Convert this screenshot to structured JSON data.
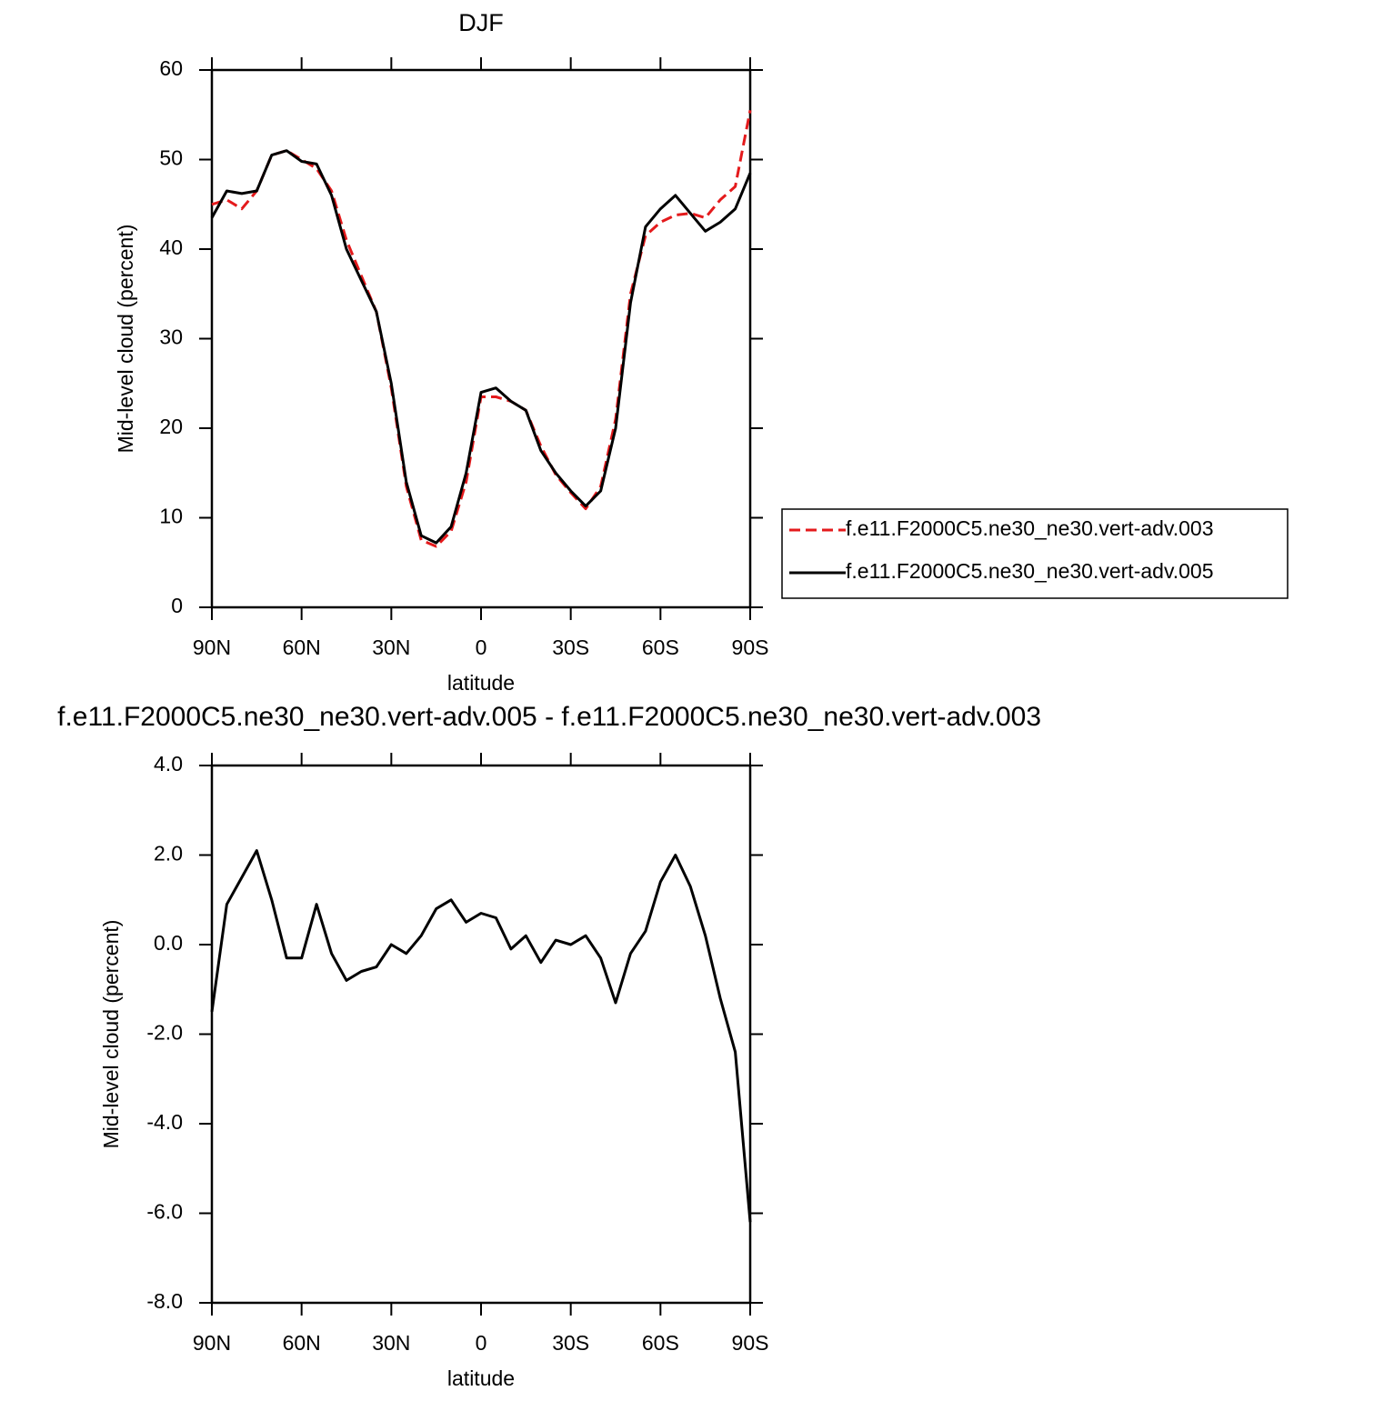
{
  "chart_data": [
    {
      "type": "line",
      "title": "DJF",
      "ylabel": "Mid-level cloud (percent)",
      "xlabel": "latitude",
      "x": [
        90,
        85,
        80,
        75,
        70,
        65,
        60,
        55,
        50,
        45,
        40,
        35,
        30,
        25,
        20,
        15,
        10,
        5,
        0,
        -5,
        -10,
        -15,
        -20,
        -25,
        -30,
        -35,
        -40,
        -45,
        -50,
        -55,
        -60,
        -65,
        -70,
        -75,
        -80,
        -85,
        -90
      ],
      "xlim": [
        90,
        -90
      ],
      "xticks": [
        {
          "value": 90,
          "label": "90N"
        },
        {
          "value": 60,
          "label": "60N"
        },
        {
          "value": 30,
          "label": "30N"
        },
        0,
        {
          "value": -30,
          "label": "30S"
        },
        {
          "value": -60,
          "label": "60S"
        },
        {
          "value": -90,
          "label": "90S"
        }
      ],
      "ylim": [
        0,
        60
      ],
      "yticks": [
        0,
        10,
        20,
        30,
        40,
        50,
        60
      ],
      "series": [
        {
          "name": "f.e11.F2000C5.ne30_ne30.vert-adv.003",
          "color": "#e41a1c",
          "dash": true,
          "values": [
            45,
            45.5,
            44.5,
            46.5,
            50.5,
            51,
            50,
            49,
            46.5,
            41,
            37,
            33,
            24.5,
            13.5,
            7.5,
            6.8,
            8.5,
            14,
            23.5,
            23.5,
            23,
            22,
            18,
            14.8,
            12.8,
            11,
            13.5,
            21,
            35,
            41.5,
            43,
            43.8,
            44,
            43.5,
            45.5,
            47,
            55.5
          ]
        },
        {
          "name": "f.e11.F2000C5.ne30_ne30.vert-adv.005",
          "color": "#000000",
          "dash": false,
          "values": [
            43.5,
            46.5,
            46.2,
            46.5,
            50.5,
            51,
            49.8,
            49.5,
            46,
            40,
            36.5,
            33,
            25,
            14,
            8,
            7.2,
            9,
            15,
            24,
            24.5,
            23,
            22,
            17.5,
            15,
            13,
            11.3,
            13,
            20,
            34,
            42.5,
            44.5,
            46,
            44,
            42,
            43,
            44.5,
            48.5
          ]
        }
      ]
    },
    {
      "type": "line",
      "title": "f.e11.F2000C5.ne30_ne30.vert-adv.005 - f.e11.F2000C5.ne30_ne30.vert-adv.003",
      "ylabel": "Mid-level cloud (percent)",
      "xlabel": "latitude",
      "x": [
        90,
        85,
        80,
        75,
        70,
        65,
        60,
        55,
        50,
        45,
        40,
        35,
        30,
        25,
        20,
        15,
        10,
        5,
        0,
        -5,
        -10,
        -15,
        -20,
        -25,
        -30,
        -35,
        -40,
        -45,
        -50,
        -55,
        -60,
        -65,
        -70,
        -75,
        -80,
        -85,
        -90
      ],
      "xlim": [
        90,
        -90
      ],
      "xticks": [
        {
          "value": 90,
          "label": "90N"
        },
        {
          "value": 60,
          "label": "60N"
        },
        {
          "value": 30,
          "label": "30N"
        },
        0,
        {
          "value": -30,
          "label": "30S"
        },
        {
          "value": -60,
          "label": "60S"
        },
        {
          "value": -90,
          "label": "90S"
        }
      ],
      "ylim": [
        -8,
        4
      ],
      "yticks": [
        {
          "value": -8,
          "label": "-8.0"
        },
        {
          "value": -6,
          "label": "-6.0"
        },
        {
          "value": -4,
          "label": "-4.0"
        },
        {
          "value": -2,
          "label": "-2.0"
        },
        {
          "value": 0,
          "label": "0.0"
        },
        {
          "value": 2,
          "label": "2.0"
        },
        {
          "value": 4,
          "label": "4.0"
        }
      ],
      "series": [
        {
          "color": "#000000",
          "dash": false,
          "values": [
            -1.5,
            0.9,
            1.5,
            2.1,
            1.0,
            -0.3,
            -0.3,
            0.9,
            -0.2,
            -0.8,
            -0.6,
            -0.5,
            0,
            -0.2,
            0.2,
            0.8,
            1.0,
            0.5,
            0.7,
            0.6,
            -0.1,
            0.2,
            -0.4,
            0.1,
            0,
            0.2,
            -0.3,
            -1.3,
            -0.2,
            0.3,
            1.4,
            2.0,
            1.3,
            0.2,
            -1.2,
            -2.4,
            -6.2
          ]
        }
      ]
    }
  ]
}
